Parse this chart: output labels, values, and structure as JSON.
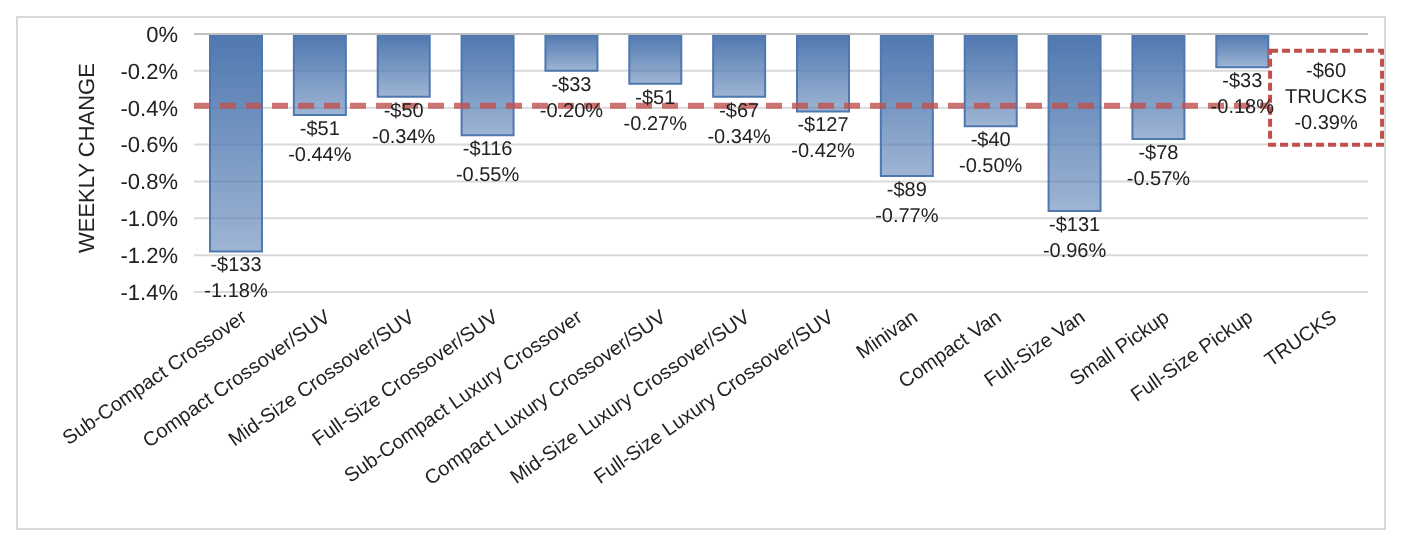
{
  "chart_data": {
    "type": "bar",
    "ylabel": "WEEKLY CHANGE",
    "categories": [
      "Sub-Compact Crossover",
      "Compact Crossover/SUV",
      "Mid-Size Crossover/SUV",
      "Full-Size Crossover/SUV",
      "Sub-Compact Luxury Crossover",
      "Compact Luxury Crossover/SUV",
      "Mid-Size Luxury Crossover/SUV",
      "Full-Size Luxury Crossover/SUV",
      "Minivan",
      "Compact Van",
      "Full-Size Van",
      "Small Pickup",
      "Full-Size Pickup",
      "TRUCKS"
    ],
    "values": [
      -1.18,
      -0.44,
      -0.34,
      -0.55,
      -0.2,
      -0.27,
      -0.34,
      -0.42,
      -0.77,
      -0.5,
      -0.96,
      -0.57,
      -0.18,
      null
    ],
    "value_labels": [
      "-$133\n-1.18%",
      "-$51\n-0.44%",
      "-$50\n-0.34%",
      "-$116\n-0.55%",
      "-$33\n-0.20%",
      "-$51\n-0.27%",
      "-$67\n-0.34%",
      "-$127\n-0.42%",
      "-$89\n-0.77%",
      "-$40\n-0.50%",
      "-$131\n-0.96%",
      "-$78\n-0.57%",
      "-$33\n-0.18%",
      null
    ],
    "color": "#4f78b0",
    "ylim": [
      -1.4,
      0
    ],
    "yticks": [
      {
        "value": 0,
        "label": "0%"
      },
      {
        "value": -0.2,
        "label": "-0.2%"
      },
      {
        "value": -0.4,
        "label": "-0.4%"
      },
      {
        "value": -0.6,
        "label": "-0.6%"
      },
      {
        "value": -0.8,
        "label": "-0.8%"
      },
      {
        "value": -1.0,
        "label": "-1.0%"
      },
      {
        "value": -1.2,
        "label": "-1.2%"
      },
      {
        "value": -1.4,
        "label": "-1.4%"
      }
    ],
    "grid": "y",
    "ref_lines": [
      {
        "axis": "y",
        "value": -0.39,
        "label": "-$60\nTRUCKS\n-0.39%",
        "color": "#c0504d",
        "line_style": "dashed"
      }
    ]
  }
}
